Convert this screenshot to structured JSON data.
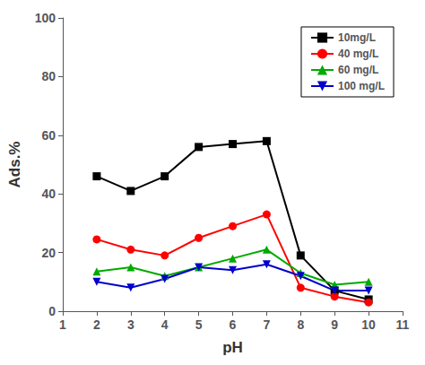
{
  "chart_data": {
    "type": "line",
    "xlabel": "pH",
    "ylabel": "Ads.%",
    "x": [
      2,
      3,
      4,
      5,
      6,
      7,
      8,
      9,
      10
    ],
    "series": [
      {
        "name": "10mg/L",
        "color": "#000000",
        "marker": "square",
        "values": [
          46,
          41,
          46,
          56,
          57,
          58,
          19,
          7,
          4
        ]
      },
      {
        "name": "40 mg/L",
        "color": "#ff0000",
        "marker": "circle",
        "values": [
          24.5,
          21,
          19,
          25,
          29,
          33,
          8,
          5,
          3
        ]
      },
      {
        "name": "60 mg/L",
        "color": "#00aa00",
        "marker": "triangle",
        "values": [
          13.5,
          15,
          12,
          15,
          18,
          21,
          13,
          9,
          10
        ]
      },
      {
        "name": "100 mg/L",
        "color": "#0000cc",
        "marker": "triangle_down",
        "values": [
          10,
          8,
          11,
          15,
          14,
          16,
          12,
          7,
          7
        ]
      }
    ],
    "xlim": [
      1,
      11
    ],
    "ylim": [
      0,
      100
    ],
    "xticks": [
      1,
      2,
      3,
      4,
      5,
      6,
      7,
      8,
      9,
      10,
      11
    ],
    "yticks": [
      0,
      20,
      40,
      60,
      80,
      100
    ],
    "grid": false,
    "legend": "upper right"
  }
}
